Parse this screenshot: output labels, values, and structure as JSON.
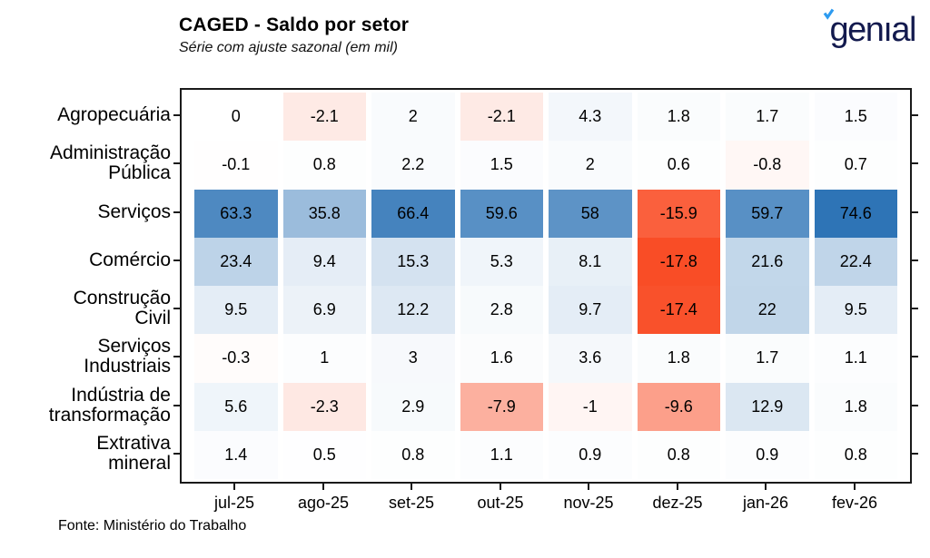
{
  "header": {
    "title": "CAGED - Saldo por setor",
    "subtitle": "Série com ajuste sazonal (em mil)",
    "logo_text": "genıal"
  },
  "chart_data": {
    "type": "heatmap",
    "title": "CAGED - Saldo por setor",
    "subtitle": "Série com ajuste sazonal (em mil)",
    "x": [
      "jul-25",
      "ago-25",
      "set-25",
      "out-25",
      "nov-25",
      "dez-25",
      "jan-26",
      "fev-26"
    ],
    "rows": [
      {
        "label": "Agropecuária",
        "values": [
          0,
          -2.1,
          2,
          -2.1,
          4.3,
          1.8,
          1.7,
          1.5
        ]
      },
      {
        "label": "Administração\nPública",
        "values": [
          -0.1,
          0.8,
          2.2,
          1.5,
          2,
          0.6,
          -0.8,
          0.7
        ]
      },
      {
        "label": "Serviços",
        "values": [
          63.3,
          35.8,
          66.4,
          59.6,
          58,
          -15.9,
          59.7,
          74.6
        ]
      },
      {
        "label": "Comércio",
        "values": [
          23.4,
          9.4,
          15.3,
          5.3,
          8.1,
          -17.8,
          21.6,
          22.4
        ]
      },
      {
        "label": "Construção\nCivil",
        "values": [
          9.5,
          6.9,
          12.2,
          2.8,
          9.7,
          -17.4,
          22,
          9.5
        ]
      },
      {
        "label": "Serviços\nIndustriais",
        "values": [
          -0.3,
          1,
          3,
          1.6,
          3.6,
          1.8,
          1.7,
          1.1
        ]
      },
      {
        "label": "Indústria de\ntransformação",
        "values": [
          5.6,
          -2.3,
          2.9,
          -7.9,
          -1,
          -9.6,
          12.9,
          1.8
        ]
      },
      {
        "label": "Extrativa\nmineral",
        "values": [
          1.4,
          0.5,
          0.8,
          1.1,
          0.9,
          0.8,
          0.9,
          0.8
        ]
      }
    ],
    "colorscale": {
      "positive_max": 74.6,
      "negative_min": -17.8,
      "blue_max_color": "#2e74b6",
      "red_max_color": "#f94d26",
      "mid_color": "#ffffff"
    },
    "legend": "none",
    "grid": "off",
    "value_text_color": "#000000"
  },
  "footer": {
    "source": "Fonte: Ministério do Trabalho"
  },
  "colors": {
    "logo_navy": "#131a4e",
    "logo_accent": "#2d9bf0",
    "axis": "#1a1a1a"
  }
}
